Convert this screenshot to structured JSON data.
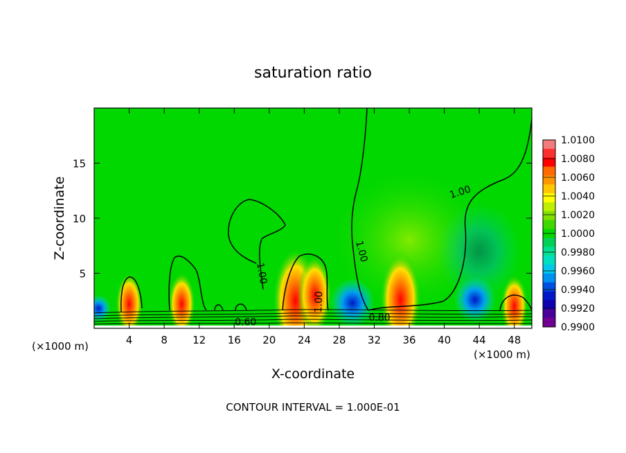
{
  "chart_data": {
    "type": "heatmap",
    "title": "saturation ratio",
    "xlabel": "X-coordinate",
    "ylabel": "Z-coordinate",
    "x_unit_left": "(×1000 m)",
    "x_unit_right": "(×1000 m)",
    "xlim": [
      0,
      50
    ],
    "ylim": [
      0,
      20
    ],
    "x_ticks": [
      4,
      8,
      12,
      16,
      20,
      24,
      28,
      32,
      36,
      40,
      44,
      48
    ],
    "y_ticks": [
      5,
      10,
      15
    ],
    "footer": "CONTOUR INTERVAL = 1.000E-01",
    "colorbar": {
      "labels": [
        "1.0100",
        "1.0080",
        "1.0060",
        "1.0040",
        "1.0020",
        "1.0000",
        "0.9980",
        "0.9960",
        "0.9940",
        "0.9920",
        "0.9900"
      ],
      "colors": [
        "#f07c7c",
        "#ff3030",
        "#ff0000",
        "#ff6a00",
        "#ff9800",
        "#ffc800",
        "#ffff00",
        "#bfef00",
        "#80e000",
        "#3fd900",
        "#00d800",
        "#00d055",
        "#00e090",
        "#00e0c0",
        "#00c8e8",
        "#0090f0",
        "#0050e0",
        "#0018c8",
        "#1000b0",
        "#4a0098",
        "#700090"
      ]
    },
    "contour_labels": [
      {
        "text": "1.00",
        "x": 41.8,
        "z": 12.4,
        "angle": -18
      },
      {
        "text": "1.00",
        "x": 30.6,
        "z": 7.0,
        "angle": 75
      },
      {
        "text": "1.00",
        "x": 19.2,
        "z": 5.0,
        "angle": 80
      },
      {
        "text": "1.00",
        "x": 25.6,
        "z": 2.4,
        "angle": -88
      },
      {
        "text": "0.60",
        "x": 17.3,
        "z": 0.6,
        "angle": 0
      },
      {
        "text": "0.80",
        "x": 32.6,
        "z": 1.0,
        "angle": 0
      }
    ],
    "warm_spots": [
      {
        "x": 4.0,
        "z": 2.2,
        "r": 1.2
      },
      {
        "x": 10.0,
        "z": 2.2,
        "r": 1.2
      },
      {
        "x": 23.0,
        "z": 2.5,
        "r": 2.0
      },
      {
        "x": 25.2,
        "z": 3.0,
        "r": 1.5
      },
      {
        "x": 35.0,
        "z": 2.6,
        "r": 1.8
      },
      {
        "x": 48.0,
        "z": 2.0,
        "r": 1.2
      }
    ],
    "cool_spots": [
      {
        "x": 29.5,
        "z": 2.3,
        "r": 1.6
      },
      {
        "x": 43.5,
        "z": 2.6,
        "r": 1.5
      },
      {
        "x": 0.5,
        "z": 1.8,
        "r": 0.9
      }
    ]
  }
}
